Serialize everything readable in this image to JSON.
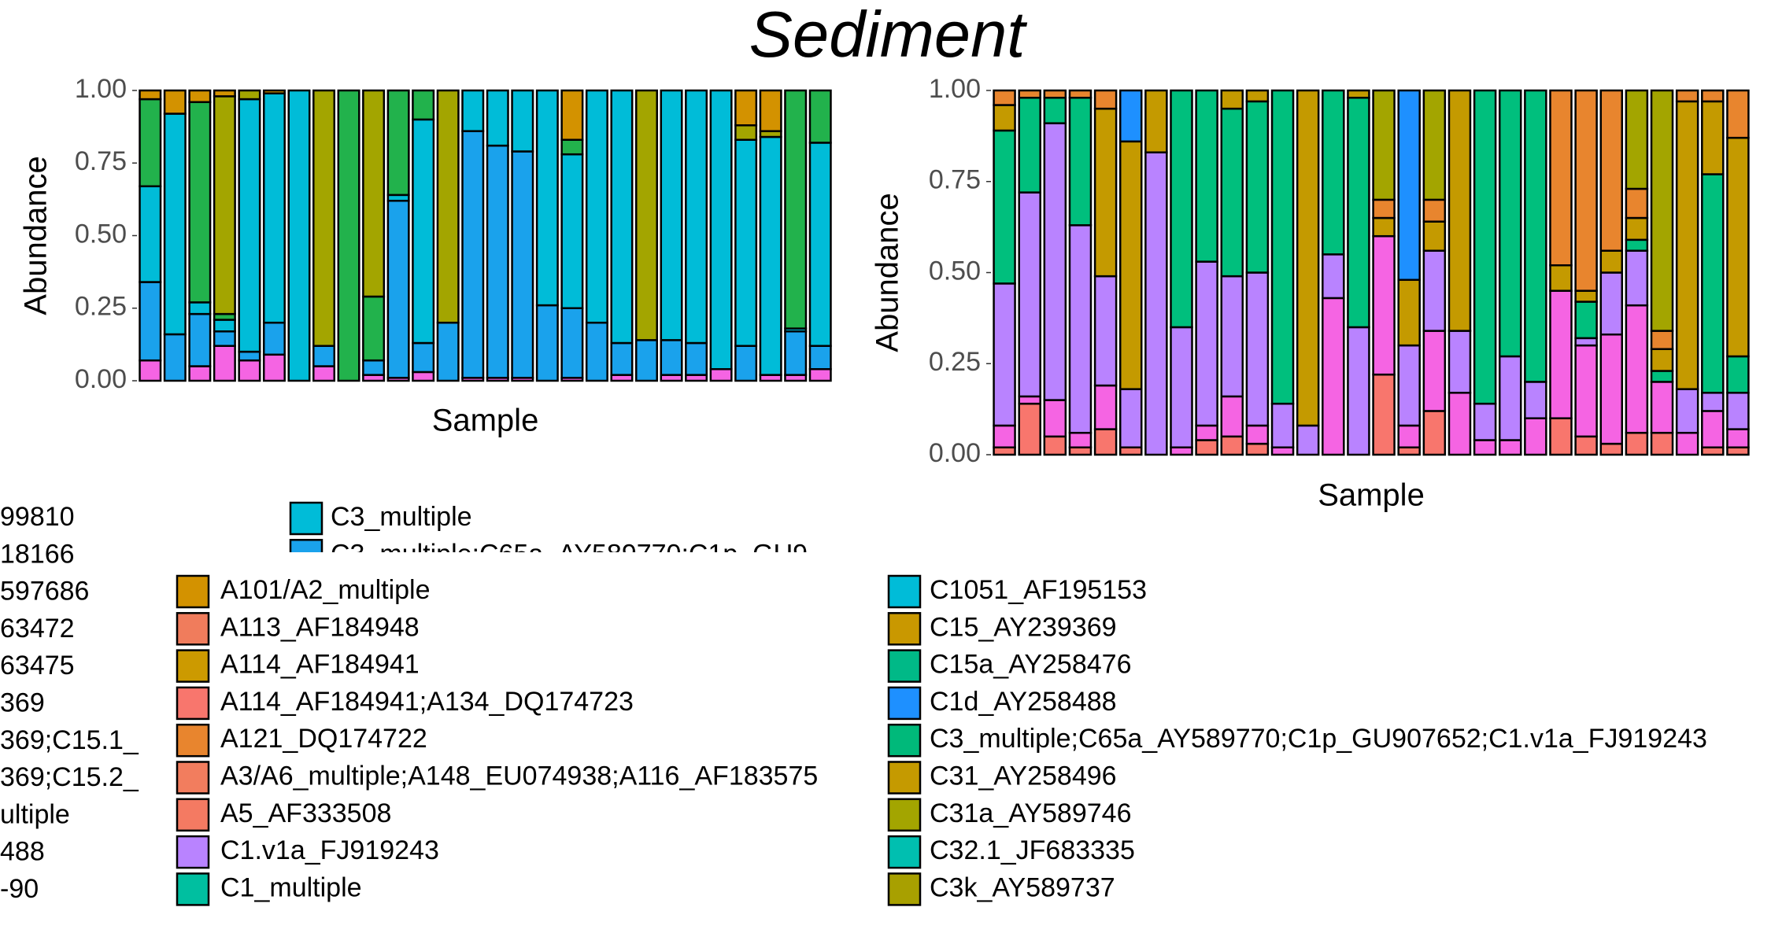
{
  "title": "Sediment",
  "chart_data": [
    {
      "type": "bar",
      "stacked": true,
      "ylabel": "Abundance",
      "xlabel": "Sample",
      "ylim": [
        0,
        1
      ],
      "yticks": [
        {
          "value": 0,
          "label": "0.00"
        },
        {
          "value": 0.25,
          "label": "0.25"
        },
        {
          "value": 0.5,
          "label": "0.50"
        },
        {
          "value": 0.75,
          "label": "0.75"
        },
        {
          "value": 1,
          "label": "1.00"
        }
      ],
      "series": [
        {
          "color": "#f564e3",
          "values": [
            0.07,
            0,
            0.05,
            0.12,
            0.07,
            0.09,
            0,
            0.05,
            0,
            0.02,
            0.01,
            0.03,
            0,
            0.01,
            0.01,
            0.01,
            0,
            0.01,
            0,
            0.02,
            0,
            0.02,
            0.02,
            0.04,
            0,
            0.02,
            0.02,
            0.04
          ]
        },
        {
          "color": "#1aa2ec",
          "values": [
            0.27,
            0.16,
            0.18,
            0.05,
            0.03,
            0.11,
            0,
            0.07,
            0,
            0.05,
            0.61,
            0.1,
            0.2,
            0.85,
            0.8,
            0.78,
            0.26,
            0.24,
            0.2,
            0.11,
            0.14,
            0.12,
            0.11,
            0,
            0.12,
            0,
            0.15,
            0.08
          ]
        },
        {
          "color": "#00bcd8",
          "values": [
            0.33,
            0.76,
            0.04,
            0.04,
            0.87,
            0.79,
            1,
            0,
            0,
            0,
            0.02,
            0.77,
            0,
            0.14,
            0.19,
            0.21,
            0.74,
            0.53,
            0.8,
            0.87,
            0,
            0.86,
            0.87,
            0.96,
            0.71,
            0.82,
            0.01,
            0.7
          ]
        },
        {
          "color": "#22b24c",
          "values": [
            0.3,
            0,
            0.69,
            0.02,
            0,
            0,
            0,
            0,
            1,
            0.22,
            0.36,
            0.1,
            0,
            0,
            0,
            0,
            0,
            0.05,
            0,
            0,
            0,
            0,
            0,
            0,
            0,
            0,
            0.82,
            0.18
          ]
        },
        {
          "color": "#a3a500",
          "values": [
            0,
            0,
            0,
            0.75,
            0.03,
            0,
            0,
            0.88,
            0,
            0.71,
            0,
            0,
            0.8,
            0,
            0,
            0,
            0,
            0,
            0,
            0,
            0.86,
            0,
            0,
            0,
            0.05,
            0.02,
            0,
            0
          ]
        },
        {
          "color": "#d39200",
          "values": [
            0.03,
            0.08,
            0.04,
            0.02,
            0,
            0.01,
            0,
            0,
            0,
            0,
            0,
            0,
            0,
            0,
            0,
            0,
            0,
            0.17,
            0,
            0,
            0,
            0,
            0,
            0,
            0.12,
            0.14,
            0,
            0
          ]
        }
      ]
    },
    {
      "type": "bar",
      "stacked": true,
      "ylabel": "Abundance",
      "xlabel": "Sample",
      "ylim": [
        0,
        1
      ],
      "yticks": [
        {
          "value": 0,
          "label": "0.00"
        },
        {
          "value": 0.25,
          "label": "0.25"
        },
        {
          "value": 0.5,
          "label": "0.50"
        },
        {
          "value": 0.75,
          "label": "0.75"
        },
        {
          "value": 1,
          "label": "1.00"
        }
      ],
      "series": [
        {
          "color": "#f8766d",
          "values": [
            0.02,
            0.14,
            0.05,
            0.02,
            0.07,
            0.02,
            0,
            0,
            0.04,
            0.05,
            0.03,
            0,
            0,
            0,
            0,
            0.22,
            0.02,
            0.12,
            0,
            0,
            0,
            0,
            0.1,
            0.05,
            0.03,
            0.06,
            0.06,
            0,
            0.02,
            0.02
          ]
        },
        {
          "color": "#f564e3",
          "values": [
            0.06,
            0.02,
            0.1,
            0.04,
            0.12,
            0,
            0,
            0.02,
            0.04,
            0.11,
            0.05,
            0.02,
            0,
            0.43,
            0,
            0.38,
            0.06,
            0.22,
            0.17,
            0.04,
            0.04,
            0.1,
            0.35,
            0.25,
            0.3,
            0.35,
            0.14,
            0.06,
            0.1,
            0.05
          ]
        },
        {
          "color": "#b983ff",
          "values": [
            0.39,
            0.56,
            0.76,
            0.57,
            0.3,
            0.16,
            0.83,
            0.33,
            0.45,
            0.33,
            0.42,
            0.12,
            0.08,
            0.12,
            0.35,
            0,
            0.22,
            0.22,
            0.17,
            0.1,
            0.23,
            0.1,
            0,
            0.02,
            0.17,
            0.15,
            0,
            0.12,
            0.05,
            0.1
          ]
        },
        {
          "color": "#00bf7d",
          "values": [
            0.42,
            0.26,
            0.07,
            0.35,
            0,
            0,
            0,
            0.65,
            0.47,
            0.46,
            0.47,
            0.86,
            0,
            0.45,
            0.63,
            0,
            0,
            0,
            0,
            0.86,
            0.73,
            0.8,
            0,
            0.1,
            0,
            0.03,
            0.03,
            0,
            0.6,
            0.1
          ]
        },
        {
          "color": "#c49a00",
          "values": [
            0.07,
            0,
            0,
            0,
            0.46,
            0.68,
            0.17,
            0,
            0,
            0.05,
            0.03,
            0,
            0.92,
            0,
            0.02,
            0.05,
            0.18,
            0.08,
            0.66,
            0,
            0,
            0,
            0.07,
            0.03,
            0.06,
            0.06,
            0.06,
            0.79,
            0.2,
            0.6
          ]
        },
        {
          "color": "#e8852e",
          "values": [
            0.04,
            0.02,
            0.02,
            0.02,
            0.05,
            0,
            0,
            0,
            0,
            0,
            0,
            0,
            0,
            0,
            0,
            0.05,
            0,
            0.06,
            0,
            0,
            0,
            0,
            0.48,
            0.55,
            0.44,
            0.08,
            0.05,
            0.03,
            0.03,
            0.13
          ]
        },
        {
          "color": "#1e90ff",
          "values": [
            0,
            0,
            0,
            0,
            0,
            0.14,
            0,
            0,
            0,
            0,
            0,
            0,
            0,
            0,
            0,
            0,
            0.52,
            0,
            0,
            0,
            0,
            0,
            0,
            0,
            0,
            0,
            0,
            0,
            0,
            0
          ]
        },
        {
          "color": "#a3a500",
          "values": [
            0,
            0,
            0,
            0,
            0,
            0,
            0,
            0,
            0,
            0,
            0,
            0,
            0,
            0,
            0,
            0.3,
            0,
            0.3,
            0,
            0,
            0,
            0,
            0,
            0,
            0,
            0.27,
            0.66,
            0,
            0,
            0
          ]
        }
      ]
    }
  ],
  "legend": [
    {
      "items": [
        {
          "label": "99810"
        },
        {
          "label": "18166"
        },
        {
          "label": "597686"
        },
        {
          "label": "63472"
        },
        {
          "label": "63475"
        },
        {
          "label": "369"
        },
        {
          "label": "369;C15.1_"
        },
        {
          "label": "369;C15.2_"
        },
        {
          "label": "ultiple"
        },
        {
          "label": "488"
        },
        {
          "label": "-90"
        }
      ]
    },
    {
      "items": [
        {
          "label": "C3_multiple",
          "color": "#00bcd8"
        },
        {
          "label": "C3_multiple;C65a_AY589770;C1p_GU9",
          "color": "#1aa2ec"
        }
      ]
    },
    {
      "items": [
        {
          "label": "A101/A2_multiple",
          "color": "#d39200"
        },
        {
          "label": "A113_AF184948",
          "color": "#f07c5c"
        },
        {
          "label": "A114_AF184941",
          "color": "#cc9a00"
        },
        {
          "label": "A114_AF184941;A134_DQ174723",
          "color": "#f8766d"
        },
        {
          "label": "A121_DQ174722",
          "color": "#e8852e"
        },
        {
          "label": "A3/A6_multiple;A148_EU074938;A116_AF183575",
          "color": "#f27d5e"
        },
        {
          "label": "A5_AF333508",
          "color": "#f47a62"
        },
        {
          "label": "C1.v1a_FJ919243",
          "color": "#b983ff"
        },
        {
          "label": "C1_multiple",
          "color": "#00bfa0"
        }
      ]
    },
    {
      "items": [
        {
          "label": "C1051_AF195153",
          "color": "#00bcd8"
        },
        {
          "label": "C15_AY239369",
          "color": "#c99800"
        },
        {
          "label": "C15a_AY258476",
          "color": "#00b987"
        },
        {
          "label": "C1d_AY258488",
          "color": "#1e90ff"
        },
        {
          "label": "C3_multiple;C65a_AY589770;C1p_GU907652;C1.v1a_FJ919243",
          "color": "#00b97a"
        },
        {
          "label": "C31_AY258496",
          "color": "#c59a00"
        },
        {
          "label": "C31a_AY589746",
          "color": "#a3a500"
        },
        {
          "label": "C32.1_JF683335",
          "color": "#00bfb0"
        },
        {
          "label": "C3k_AY589737",
          "color": "#a8a000"
        }
      ]
    }
  ]
}
